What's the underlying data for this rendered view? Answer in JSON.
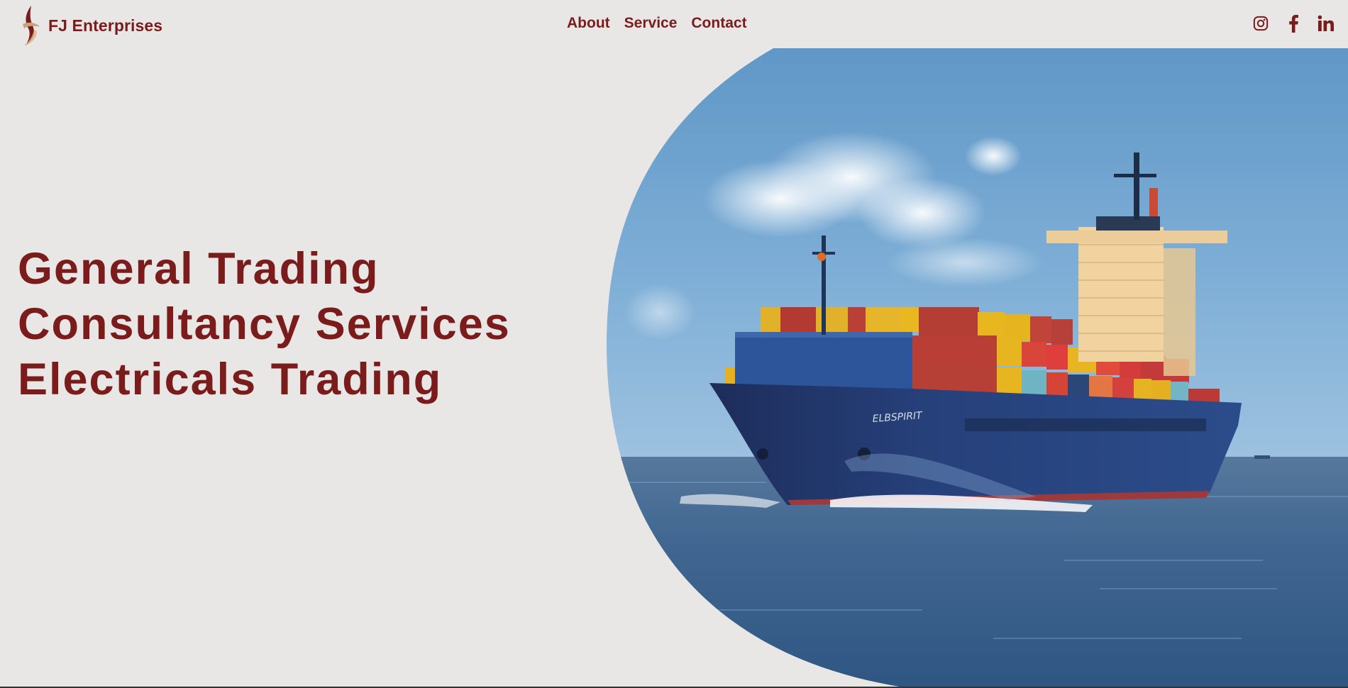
{
  "brand": {
    "name": "FJ Enterprises",
    "logo_icon": "flame-swirl-logo-icon"
  },
  "nav": {
    "items": [
      {
        "label": "About"
      },
      {
        "label": "Service"
      },
      {
        "label": "Contact"
      }
    ]
  },
  "social": {
    "icons": [
      "instagram-icon",
      "facebook-icon",
      "linkedin-icon"
    ]
  },
  "hero": {
    "lines": [
      "General Trading",
      "Consultancy Services",
      "Electricals Trading"
    ],
    "image": "container-ship-photo",
    "ship_name": "ELBSPIRIT"
  },
  "colors": {
    "accent": "#7a1c1c",
    "background": "#e9e7e5"
  }
}
